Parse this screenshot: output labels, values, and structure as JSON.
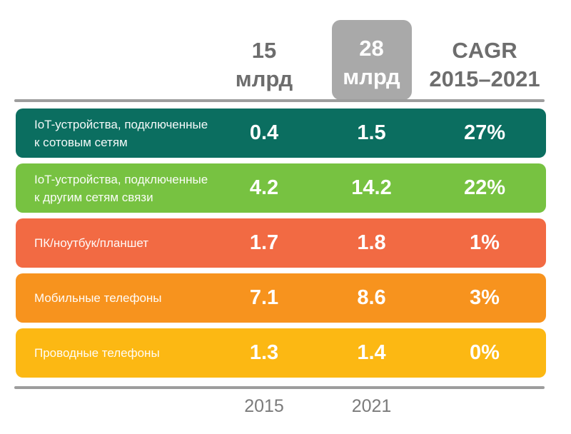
{
  "header": {
    "col_2015": {
      "line1": "15",
      "line2": "млрд"
    },
    "col_2021": {
      "line1": "28",
      "line2": "млрд"
    },
    "col_cagr": {
      "line1": "CAGR",
      "line2": "2015–2021"
    }
  },
  "footer": {
    "year_2015": "2015",
    "year_2021": "2021"
  },
  "rows": [
    {
      "label_line1": "IoT-устройства, подключенные",
      "label_line2": "к сотовым сетям",
      "v2015": "0.4",
      "v2021": "1.5",
      "cagr": "27%",
      "color": "#0b6e60"
    },
    {
      "label_line1": "IoT-устройства, подключенные",
      "label_line2": "к другим сетям связи",
      "v2015": "4.2",
      "v2021": "14.2",
      "cagr": "22%",
      "color": "#77c241"
    },
    {
      "label_line1": "ПК/ноутбук/планшет",
      "label_line2": "",
      "v2015": "1.7",
      "v2021": "1.8",
      "cagr": "1%",
      "color": "#f26a43"
    },
    {
      "label_line1": "Мобильные телефоны",
      "label_line2": "",
      "v2015": "7.1",
      "v2021": "8.6",
      "cagr": "3%",
      "color": "#f7931e"
    },
    {
      "label_line1": "Проводные телефоны",
      "label_line2": "",
      "v2015": "1.3",
      "v2021": "1.4",
      "cagr": "0%",
      "color": "#fcb813"
    }
  ],
  "colors": {
    "row_teal": "#0b6e60",
    "row_green": "#77c241",
    "row_red_orange": "#f26a43",
    "row_orange": "#f7931e",
    "row_yellow": "#fcb813",
    "header_badge_gray": "#a9a9a9",
    "header_text_gray": "#6d6d6d",
    "divider_gray": "#9d9d9d",
    "footer_text_gray": "#7b7b7b"
  },
  "chart_data": {
    "type": "table",
    "title": "",
    "unit": "млрд",
    "totals": {
      "2015": 15,
      "2021": 28
    },
    "column_headers": [
      "15 млрд",
      "28 млрд",
      "CAGR 2015–2021"
    ],
    "footer_labels": [
      "2015",
      "2021"
    ],
    "categories": [
      "IoT-устройства, подключенные к сотовым сетям",
      "IoT-устройства, подключенные к другим сетям связи",
      "ПК/ноутбук/планшет",
      "Мобильные телефоны",
      "Проводные телефоны"
    ],
    "series": [
      {
        "name": "2015",
        "values": [
          0.4,
          4.2,
          1.7,
          7.1,
          1.3
        ]
      },
      {
        "name": "2021",
        "values": [
          1.5,
          14.2,
          1.8,
          8.6,
          1.4
        ]
      },
      {
        "name": "CAGR 2015–2021",
        "values": [
          "27%",
          "22%",
          "1%",
          "3%",
          "0%"
        ]
      }
    ]
  }
}
